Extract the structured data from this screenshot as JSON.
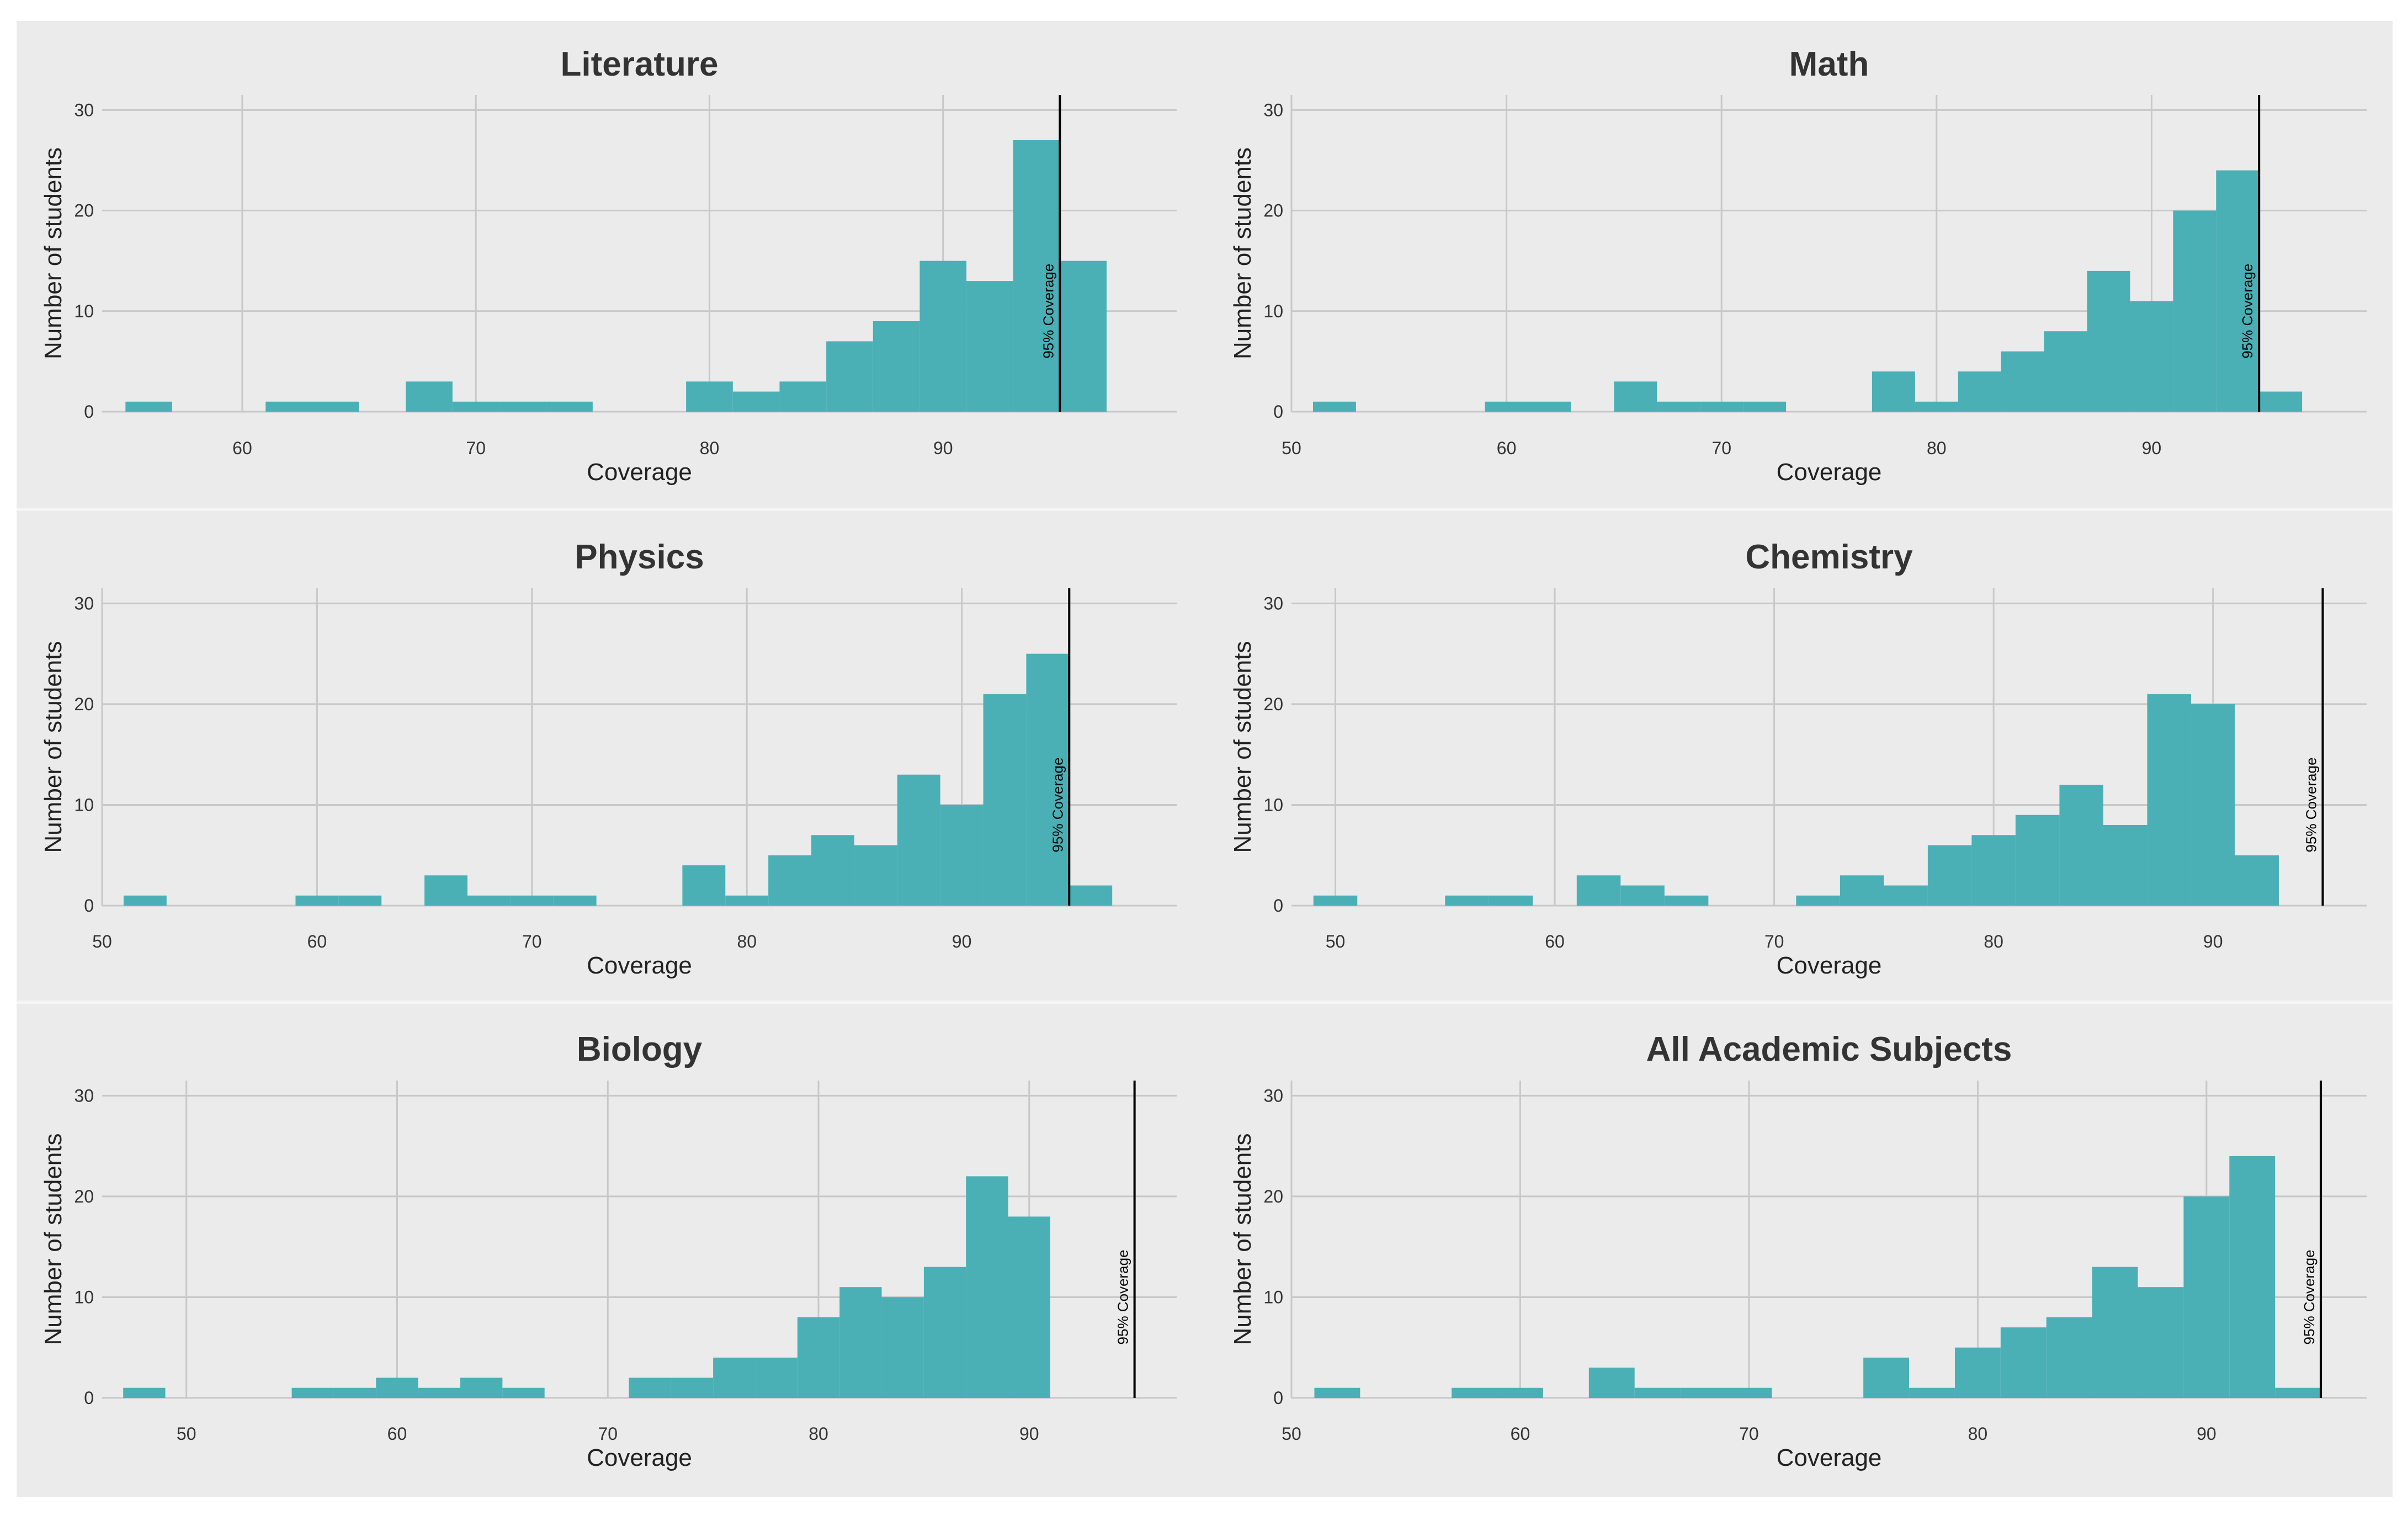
{
  "figure_background": "#ebebeb",
  "colors": {
    "bar": "#4ab0b6",
    "grid": "#c8c8c8",
    "reference_line": "#000000",
    "panel_bg": "#ebebeb",
    "separator": "#f5f5f5"
  },
  "chart_data": [
    {
      "type": "bar",
      "title": "Literature",
      "xlabel": "Coverage",
      "ylabel": "Number of students",
      "xlim": [
        54,
        100
      ],
      "ylim": [
        0,
        31.5
      ],
      "xticks": [
        60,
        70,
        80,
        90
      ],
      "yticks": [
        0,
        10,
        20,
        30
      ],
      "reference_line": {
        "x": 95,
        "label": "95% Coverage"
      },
      "bins": [
        {
          "x0": 55,
          "x1": 57,
          "count": 1
        },
        {
          "x0": 61,
          "x1": 63,
          "count": 1
        },
        {
          "x0": 63,
          "x1": 65,
          "count": 1
        },
        {
          "x0": 67,
          "x1": 69,
          "count": 3
        },
        {
          "x0": 69,
          "x1": 71,
          "count": 1
        },
        {
          "x0": 71,
          "x1": 73,
          "count": 1
        },
        {
          "x0": 73,
          "x1": 75,
          "count": 1
        },
        {
          "x0": 79,
          "x1": 81,
          "count": 3
        },
        {
          "x0": 81,
          "x1": 83,
          "count": 2
        },
        {
          "x0": 83,
          "x1": 85,
          "count": 3
        },
        {
          "x0": 85,
          "x1": 87,
          "count": 7
        },
        {
          "x0": 87,
          "x1": 89,
          "count": 9
        },
        {
          "x0": 89,
          "x1": 91,
          "count": 15
        },
        {
          "x0": 91,
          "x1": 93,
          "count": 13
        },
        {
          "x0": 93,
          "x1": 95,
          "count": 27
        },
        {
          "x0": 95,
          "x1": 97,
          "count": 15
        }
      ]
    },
    {
      "type": "bar",
      "title": "Math",
      "xlabel": "Coverage",
      "ylabel": "Number of students",
      "xlim": [
        50,
        100
      ],
      "ylim": [
        0,
        31.5
      ],
      "xticks": [
        50,
        60,
        70,
        80,
        90
      ],
      "yticks": [
        0,
        10,
        20,
        30
      ],
      "reference_line": {
        "x": 95,
        "label": "95% Coverage"
      },
      "bins": [
        {
          "x0": 51,
          "x1": 53,
          "count": 1
        },
        {
          "x0": 59,
          "x1": 61,
          "count": 1
        },
        {
          "x0": 61,
          "x1": 63,
          "count": 1
        },
        {
          "x0": 65,
          "x1": 67,
          "count": 3
        },
        {
          "x0": 67,
          "x1": 69,
          "count": 1
        },
        {
          "x0": 69,
          "x1": 71,
          "count": 1
        },
        {
          "x0": 71,
          "x1": 73,
          "count": 1
        },
        {
          "x0": 77,
          "x1": 79,
          "count": 4
        },
        {
          "x0": 79,
          "x1": 81,
          "count": 1
        },
        {
          "x0": 81,
          "x1": 83,
          "count": 4
        },
        {
          "x0": 83,
          "x1": 85,
          "count": 6
        },
        {
          "x0": 85,
          "x1": 87,
          "count": 8
        },
        {
          "x0": 87,
          "x1": 89,
          "count": 14
        },
        {
          "x0": 89,
          "x1": 91,
          "count": 11
        },
        {
          "x0": 91,
          "x1": 93,
          "count": 20
        },
        {
          "x0": 93,
          "x1": 95,
          "count": 24
        },
        {
          "x0": 95,
          "x1": 97,
          "count": 2
        }
      ]
    },
    {
      "type": "bar",
      "title": "Physics",
      "xlabel": "Coverage",
      "ylabel": "Number of students",
      "xlim": [
        50,
        100
      ],
      "ylim": [
        0,
        31.5
      ],
      "xticks": [
        50,
        60,
        70,
        80,
        90
      ],
      "yticks": [
        0,
        10,
        20,
        30
      ],
      "reference_line": {
        "x": 95,
        "label": "95% Coverage"
      },
      "bins": [
        {
          "x0": 51,
          "x1": 53,
          "count": 1
        },
        {
          "x0": 59,
          "x1": 61,
          "count": 1
        },
        {
          "x0": 61,
          "x1": 63,
          "count": 1
        },
        {
          "x0": 65,
          "x1": 67,
          "count": 3
        },
        {
          "x0": 67,
          "x1": 69,
          "count": 1
        },
        {
          "x0": 69,
          "x1": 71,
          "count": 1
        },
        {
          "x0": 71,
          "x1": 73,
          "count": 1
        },
        {
          "x0": 77,
          "x1": 79,
          "count": 4
        },
        {
          "x0": 79,
          "x1": 81,
          "count": 1
        },
        {
          "x0": 81,
          "x1": 83,
          "count": 5
        },
        {
          "x0": 83,
          "x1": 85,
          "count": 7
        },
        {
          "x0": 85,
          "x1": 87,
          "count": 6
        },
        {
          "x0": 87,
          "x1": 89,
          "count": 13
        },
        {
          "x0": 89,
          "x1": 91,
          "count": 10
        },
        {
          "x0": 91,
          "x1": 93,
          "count": 21
        },
        {
          "x0": 93,
          "x1": 95,
          "count": 25
        },
        {
          "x0": 95,
          "x1": 97,
          "count": 2
        }
      ]
    },
    {
      "type": "bar",
      "title": "Chemistry",
      "xlabel": "Coverage",
      "ylabel": "Number of students",
      "xlim": [
        48,
        97
      ],
      "ylim": [
        0,
        31.5
      ],
      "xticks": [
        50,
        60,
        70,
        80,
        90
      ],
      "yticks": [
        0,
        10,
        20,
        30
      ],
      "reference_line": {
        "x": 95,
        "label": "95% Coverage"
      },
      "bins": [
        {
          "x0": 49,
          "x1": 51,
          "count": 1
        },
        {
          "x0": 55,
          "x1": 57,
          "count": 1
        },
        {
          "x0": 57,
          "x1": 59,
          "count": 1
        },
        {
          "x0": 61,
          "x1": 63,
          "count": 3
        },
        {
          "x0": 63,
          "x1": 65,
          "count": 2
        },
        {
          "x0": 65,
          "x1": 67,
          "count": 1
        },
        {
          "x0": 71,
          "x1": 73,
          "count": 1
        },
        {
          "x0": 73,
          "x1": 75,
          "count": 3
        },
        {
          "x0": 75,
          "x1": 77,
          "count": 2
        },
        {
          "x0": 77,
          "x1": 79,
          "count": 6
        },
        {
          "x0": 79,
          "x1": 81,
          "count": 7
        },
        {
          "x0": 81,
          "x1": 83,
          "count": 9
        },
        {
          "x0": 83,
          "x1": 85,
          "count": 12
        },
        {
          "x0": 85,
          "x1": 87,
          "count": 8
        },
        {
          "x0": 87,
          "x1": 89,
          "count": 21
        },
        {
          "x0": 89,
          "x1": 91,
          "count": 20
        },
        {
          "x0": 91,
          "x1": 93,
          "count": 5
        }
      ]
    },
    {
      "type": "bar",
      "title": "Biology",
      "xlabel": "Coverage",
      "ylabel": "Number of students",
      "xlim": [
        46,
        97
      ],
      "ylim": [
        0,
        31.5
      ],
      "xticks": [
        50,
        60,
        70,
        80,
        90
      ],
      "yticks": [
        0,
        10,
        20,
        30
      ],
      "reference_line": {
        "x": 95,
        "label": "95% Coverage"
      },
      "bins": [
        {
          "x0": 47,
          "x1": 49,
          "count": 1
        },
        {
          "x0": 55,
          "x1": 57,
          "count": 1
        },
        {
          "x0": 57,
          "x1": 59,
          "count": 1
        },
        {
          "x0": 59,
          "x1": 61,
          "count": 2
        },
        {
          "x0": 61,
          "x1": 63,
          "count": 1
        },
        {
          "x0": 63,
          "x1": 65,
          "count": 2
        },
        {
          "x0": 65,
          "x1": 67,
          "count": 1
        },
        {
          "x0": 71,
          "x1": 73,
          "count": 2
        },
        {
          "x0": 73,
          "x1": 75,
          "count": 2
        },
        {
          "x0": 75,
          "x1": 77,
          "count": 4
        },
        {
          "x0": 77,
          "x1": 79,
          "count": 4
        },
        {
          "x0": 79,
          "x1": 81,
          "count": 8
        },
        {
          "x0": 81,
          "x1": 83,
          "count": 11
        },
        {
          "x0": 83,
          "x1": 85,
          "count": 10
        },
        {
          "x0": 85,
          "x1": 87,
          "count": 13
        },
        {
          "x0": 87,
          "x1": 89,
          "count": 22
        },
        {
          "x0": 89,
          "x1": 91,
          "count": 18
        }
      ]
    },
    {
      "type": "bar",
      "title": "All Academic Subjects",
      "xlabel": "Coverage",
      "ylabel": "Number of students",
      "xlim": [
        50,
        97
      ],
      "ylim": [
        0,
        31.5
      ],
      "xticks": [
        50,
        60,
        70,
        80,
        90
      ],
      "yticks": [
        0,
        10,
        20,
        30
      ],
      "reference_line": {
        "x": 95,
        "label": "95% Coverage"
      },
      "bins": [
        {
          "x0": 51,
          "x1": 53,
          "count": 1
        },
        {
          "x0": 57,
          "x1": 59,
          "count": 1
        },
        {
          "x0": 59,
          "x1": 61,
          "count": 1
        },
        {
          "x0": 63,
          "x1": 65,
          "count": 3
        },
        {
          "x0": 65,
          "x1": 67,
          "count": 1
        },
        {
          "x0": 67,
          "x1": 69,
          "count": 1
        },
        {
          "x0": 69,
          "x1": 71,
          "count": 1
        },
        {
          "x0": 75,
          "x1": 77,
          "count": 4
        },
        {
          "x0": 77,
          "x1": 79,
          "count": 1
        },
        {
          "x0": 79,
          "x1": 81,
          "count": 5
        },
        {
          "x0": 81,
          "x1": 83,
          "count": 7
        },
        {
          "x0": 83,
          "x1": 85,
          "count": 8
        },
        {
          "x0": 85,
          "x1": 87,
          "count": 13
        },
        {
          "x0": 87,
          "x1": 89,
          "count": 11
        },
        {
          "x0": 89,
          "x1": 91,
          "count": 20
        },
        {
          "x0": 91,
          "x1": 93,
          "count": 24
        },
        {
          "x0": 93,
          "x1": 95,
          "count": 1
        }
      ]
    }
  ]
}
